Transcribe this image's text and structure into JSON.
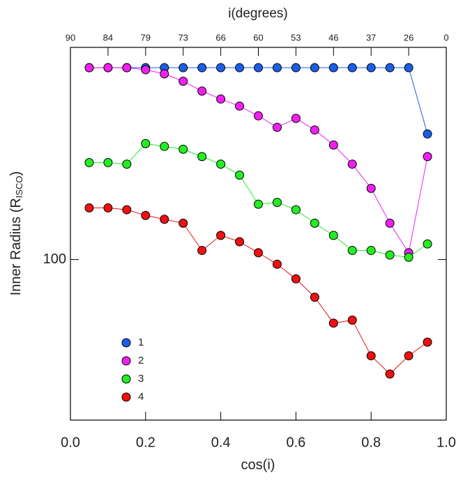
{
  "chart_data": {
    "type": "line",
    "xlabel": "cos(i)",
    "x2label": "i(degrees)",
    "ylabel": {
      "text": "Inner Radius (R",
      "sub": "ISCO",
      "end": ")"
    },
    "x": [
      0.05,
      0.1,
      0.15,
      0.2,
      0.25,
      0.3,
      0.35,
      0.4,
      0.45,
      0.5,
      0.55,
      0.6,
      0.65,
      0.7,
      0.75,
      0.8,
      0.85,
      0.9,
      0.95
    ],
    "series": [
      {
        "name": "1",
        "color": "#1a5fe8",
        "values": [
          229,
          229,
          229,
          229,
          229,
          229,
          229,
          229,
          229,
          229,
          229,
          229,
          229,
          229,
          229,
          229,
          229,
          229,
          172
        ]
      },
      {
        "name": "2",
        "color": "#f020f0",
        "values": [
          229,
          229,
          229,
          227,
          223,
          216,
          207,
          200,
          194,
          186,
          177,
          184,
          175,
          164,
          151,
          136,
          117,
          103,
          156
        ]
      },
      {
        "name": "3",
        "color": "#22ee22",
        "values": [
          152,
          152,
          151,
          165,
          163,
          161,
          156,
          151,
          144,
          127,
          128,
          124,
          117,
          111,
          104,
          104,
          102,
          101,
          107
        ]
      },
      {
        "name": "4",
        "color": "#ee1111",
        "values": [
          125,
          125,
          124,
          121,
          119,
          117,
          104,
          111,
          108,
          103,
          98,
          92,
          85,
          76,
          77,
          66,
          61,
          66,
          70
        ]
      }
    ],
    "xlim": [
      0,
      1
    ],
    "xticks": [
      {
        "value": 0,
        "label": "0.0"
      },
      {
        "value": 0.2,
        "label": "0.2"
      },
      {
        "value": 0.4,
        "label": "0.4"
      },
      {
        "value": 0.6,
        "label": "0.6"
      },
      {
        "value": 0.8,
        "label": "0.8"
      },
      {
        "value": 1,
        "label": "1.0"
      }
    ],
    "x2ticks": [
      {
        "value": 0,
        "label": "90"
      },
      {
        "value": 0.1,
        "label": "84"
      },
      {
        "value": 0.2,
        "label": "79"
      },
      {
        "value": 0.3,
        "label": "73"
      },
      {
        "value": 0.4,
        "label": "66"
      },
      {
        "value": 0.5,
        "label": "60"
      },
      {
        "value": 0.6,
        "label": "53"
      },
      {
        "value": 0.7,
        "label": "46"
      },
      {
        "value": 0.8,
        "label": "37"
      },
      {
        "value": 0.9,
        "label": "26"
      },
      {
        "value": 1,
        "label": "0"
      }
    ],
    "ylim": [
      50,
      250
    ],
    "yticks": [
      100
    ],
    "log_y": true,
    "legend": "lower left"
  }
}
